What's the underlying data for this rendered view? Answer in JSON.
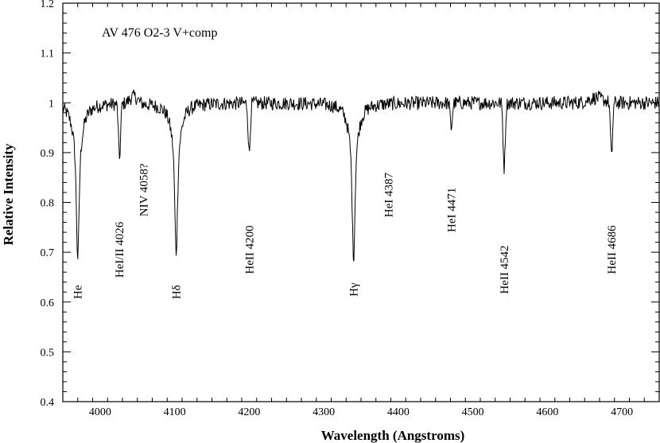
{
  "chart_data": {
    "type": "line",
    "title": "AV 476  O2-3 V+comp",
    "xlabel": "Wavelength (Angstroms)",
    "ylabel": "Relative Intensity",
    "xlim": [
      3950,
      4750
    ],
    "ylim": [
      0.4,
      1.2
    ],
    "xticks": [
      4000,
      4100,
      4200,
      4300,
      4400,
      4500,
      4600,
      4700
    ],
    "yticks": [
      0.4,
      0.5,
      0.6,
      0.7,
      0.8,
      0.9,
      1,
      1.1,
      1.2
    ],
    "grid": false,
    "continuum": 1.0,
    "features": [
      {
        "label": "He",
        "wavelength": 3970,
        "min_intensity": 0.69,
        "label_intensity": 0.62
      },
      {
        "label": "HeI/II 4026",
        "wavelength": 4026,
        "min_intensity": 0.89,
        "label_intensity": 0.705
      },
      {
        "label": "NIV 4058?",
        "wavelength": 4058,
        "min_intensity": null,
        "label_intensity": 0.825
      },
      {
        "label": "Hδ",
        "wavelength": 4102,
        "min_intensity": 0.7,
        "label_intensity": 0.62
      },
      {
        "label": "HeII 4200",
        "wavelength": 4200,
        "min_intensity": 0.9,
        "label_intensity": 0.705
      },
      {
        "label": "Hγ",
        "wavelength": 4340,
        "min_intensity": 0.69,
        "label_intensity": 0.625
      },
      {
        "label": "HeI 4387",
        "wavelength": 4387,
        "min_intensity": null,
        "label_intensity": 0.815
      },
      {
        "label": "HeI 4471",
        "wavelength": 4471,
        "min_intensity": 0.95,
        "label_intensity": 0.785
      },
      {
        "label": "HeII 4542",
        "wavelength": 4542,
        "min_intensity": 0.87,
        "label_intensity": 0.665
      },
      {
        "label": "HeII 4686",
        "wavelength": 4686,
        "min_intensity": 0.89,
        "label_intensity": 0.705
      }
    ]
  }
}
